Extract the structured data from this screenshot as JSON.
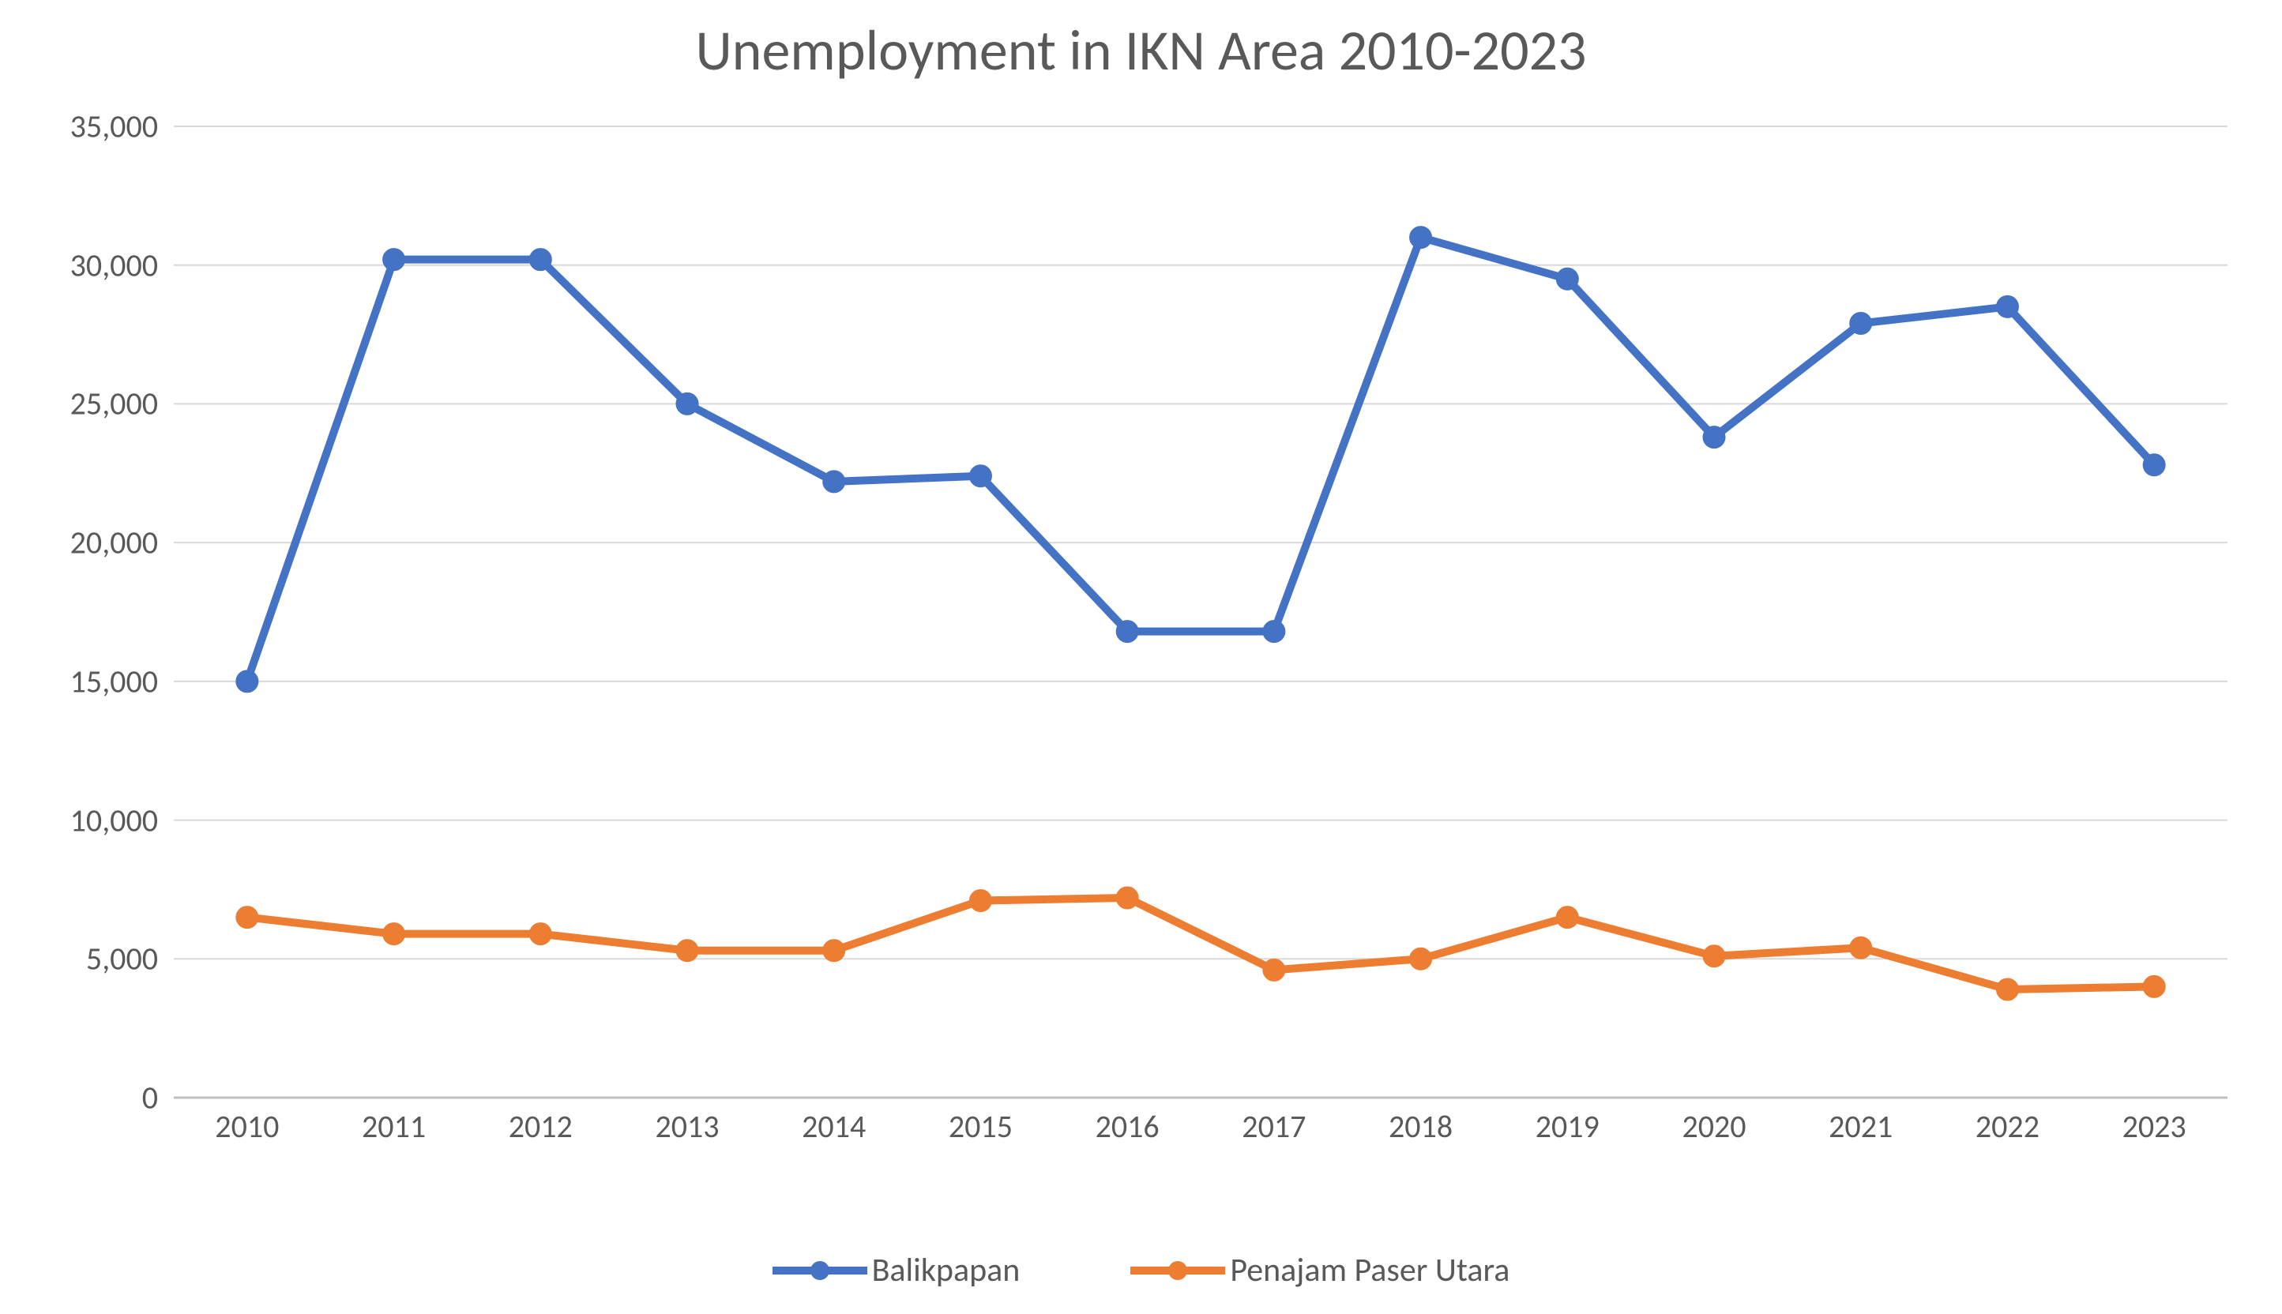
{
  "chart": {
    "type": "line",
    "title": "Unemployment in IKN Area 2010-2023",
    "title_fontsize": 72,
    "title_color": "#595959",
    "background_color": "#ffffff",
    "grid_color": "#d9d9d9",
    "baseline_color": "#bfbfbf",
    "axis_label_color": "#595959",
    "axis_label_fontsize": 40,
    "categories": [
      "2010",
      "2011",
      "2012",
      "2013",
      "2014",
      "2015",
      "2016",
      "2017",
      "2018",
      "2019",
      "2020",
      "2021",
      "2022",
      "2023"
    ],
    "ylim": [
      0,
      35000
    ],
    "ytick_step": 5000,
    "ytick_labels": [
      "0",
      "5,000",
      "10,000",
      "15,000",
      "20,000",
      "25,000",
      "30,000",
      "35,000"
    ],
    "line_width": 10,
    "marker_radius": 14,
    "series": [
      {
        "name": "Balikpapan",
        "color": "#4472c4",
        "values": [
          15000,
          30200,
          30200,
          25000,
          22200,
          22400,
          16800,
          16800,
          31000,
          29500,
          23800,
          27900,
          28500,
          22800
        ]
      },
      {
        "name": "Penajam Paser Utara",
        "color": "#ed7d31",
        "values": [
          6500,
          5900,
          5900,
          5300,
          5300,
          7100,
          7200,
          4600,
          5000,
          6500,
          5100,
          5400,
          3900,
          4000
        ]
      }
    ],
    "legend": {
      "position": "bottom",
      "fontsize": 42,
      "swatch_line_width": 10,
      "swatch_marker_radius": 12
    }
  }
}
